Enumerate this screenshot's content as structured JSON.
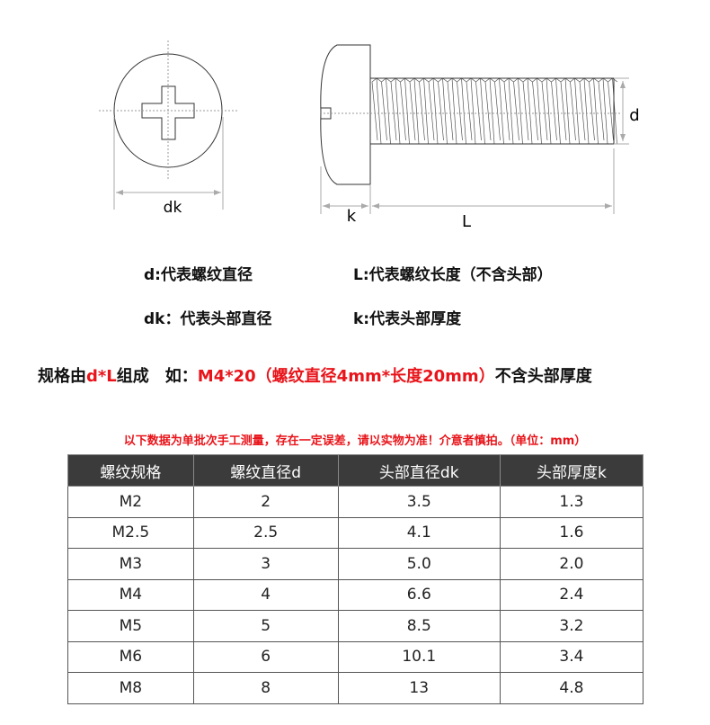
{
  "diagram": {
    "labels": {
      "dk": "dk",
      "k": "k",
      "L": "L",
      "d": "d"
    }
  },
  "legend": {
    "d": "d:代表螺纹直径",
    "L": "L:代表螺纹长度（不含头部）",
    "dk": "dk：代表头部直径",
    "k": "k:代表头部厚度"
  },
  "spec": {
    "p1": "规格由",
    "p2": "d*L",
    "p3": "组成　如：",
    "p4": "M4*20（螺纹直径4mm*长度20mm）",
    "p5": "不含头部厚度"
  },
  "note": "以下数据为单批次手工测量，存在一定误差，请以实物为准！介意者慎拍。（单位：mm）",
  "table": {
    "headers": [
      "螺纹规格",
      "螺纹直径d",
      "头部直径dk",
      "头部厚度k"
    ],
    "rows": [
      [
        "M2",
        "2",
        "3.5",
        "1.3"
      ],
      [
        "M2.5",
        "2.5",
        "4.1",
        "1.6"
      ],
      [
        "M3",
        "3",
        "5.0",
        "2.0"
      ],
      [
        "M4",
        "4",
        "6.6",
        "2.4"
      ],
      [
        "M5",
        "5",
        "8.5",
        "3.2"
      ],
      [
        "M6",
        "6",
        "10.1",
        "3.4"
      ],
      [
        "M8",
        "8",
        "13",
        "4.8"
      ]
    ]
  },
  "colors": {
    "accent": "#e8141a",
    "header_bg": "#3b3b3b"
  }
}
